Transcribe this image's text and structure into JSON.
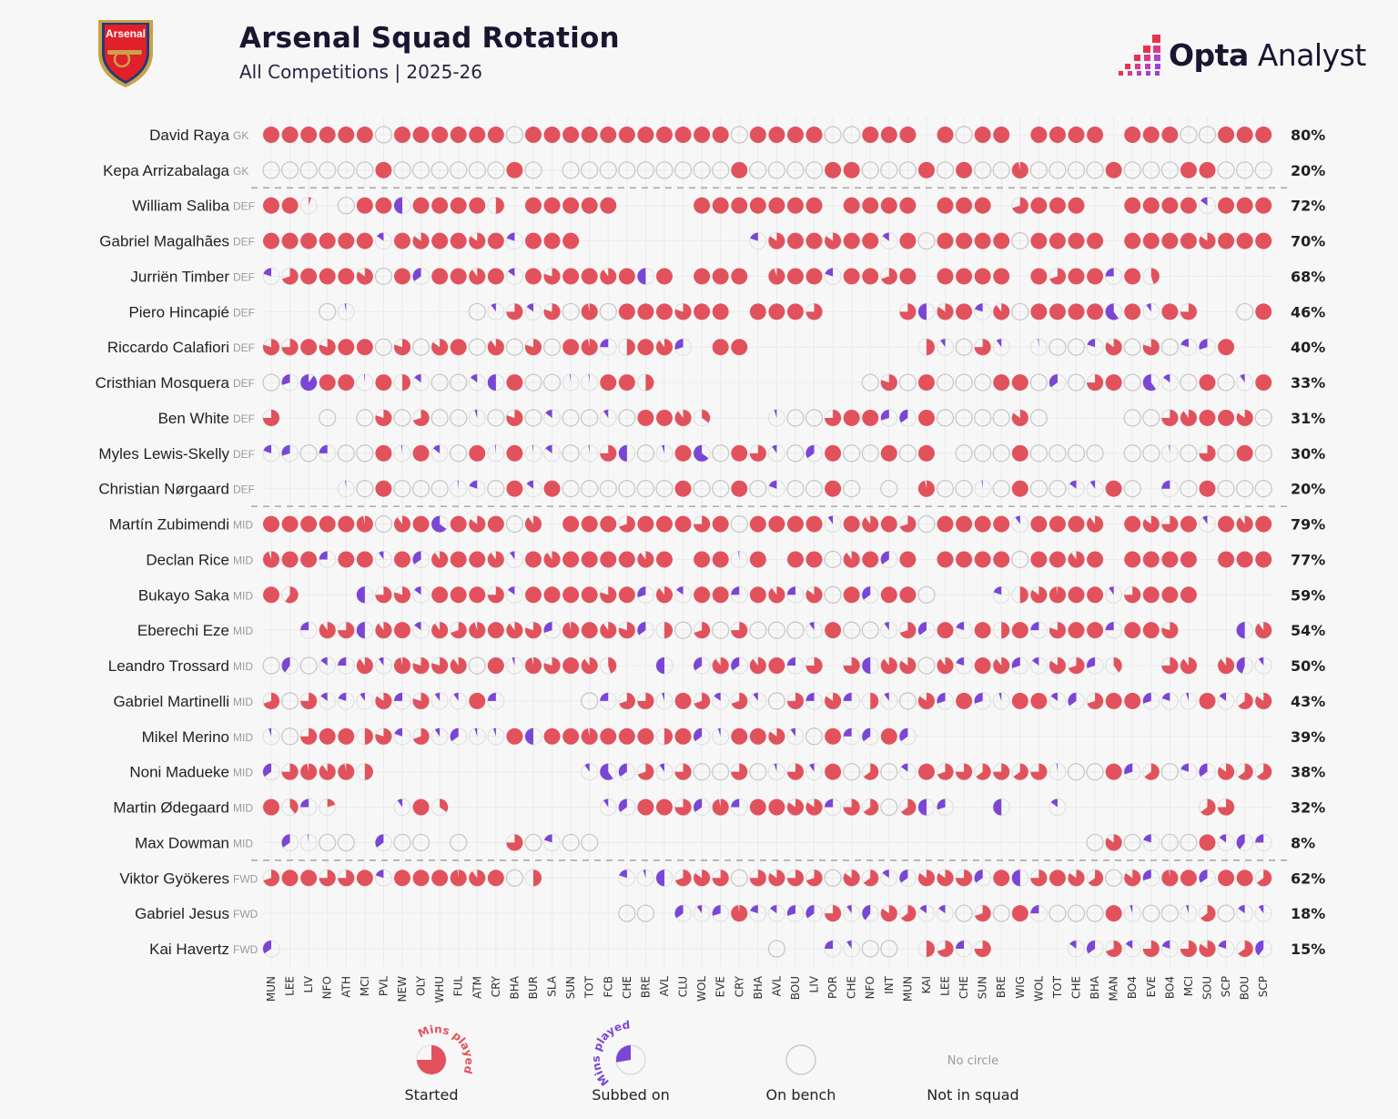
{
  "header": {
    "title": "Arsenal Squad Rotation",
    "subtitle": "All Competitions | 2025-26",
    "crest_text": "Arsenal",
    "brand_bold": "Opta",
    "brand_light": "Analyst"
  },
  "colors": {
    "started": "#e1525d",
    "subbed": "#7b45d6",
    "bench_stroke": "#c9c9c9",
    "background": "#f7f7f7",
    "text": "#222222",
    "position_text": "#9a9a9a"
  },
  "legend": {
    "mins_played": "Mins played",
    "started": "Started",
    "subbed": "Subbed on",
    "bench": "On bench",
    "no_circle": "No circle",
    "not_in_squad": "Not in squad"
  },
  "chart_data": {
    "type": "table",
    "title": "Arsenal Squad Rotation",
    "subtitle": "All Competitions | 2025-26",
    "encoding": "S = started (number = % of minutes played, none = 100), U = subbed on (number = % of minutes played), B = on bench, - = not in squad",
    "categories": [
      "MUN",
      "LEE",
      "LIV",
      "NFO",
      "ATH",
      "MCI",
      "PVL",
      "NEW",
      "OLY",
      "WHU",
      "FUL",
      "ATM",
      "CRY",
      "BHA",
      "BUR",
      "SLA",
      "SUN",
      "TOT",
      "FCB",
      "CHE",
      "BRE",
      "AVL",
      "CLU",
      "WOL",
      "EVE",
      "CRY",
      "BHA",
      "AVL",
      "BOU",
      "LIV",
      "POR",
      "CHE",
      "NFO",
      "INT",
      "MUN",
      "KAI",
      "LEE",
      "CHE",
      "SUN",
      "BRE",
      "WIG",
      "WOL",
      "TOT",
      "CHE",
      "BHA",
      "MAN",
      "BO4",
      "EVE",
      "BO4",
      "MCI",
      "SOU",
      "SCP",
      "BOU",
      "SCP"
    ],
    "group_dividers_after": [
      "GK",
      "DEF",
      "MID"
    ],
    "players": [
      {
        "name": "David Raya",
        "position": "GK",
        "percent": "80%",
        "matches": "S S S S S S B S S S S S S B S S S S S S S S S S S B S S S S B B S S S - S B S S - S S S S - S S S B B S S S"
      },
      {
        "name": "Kepa Arrizabalaga",
        "position": "GK",
        "percent": "20%",
        "matches": "B B B B B B S B B B B B B S B - B B B B B B B B B S B B B B S S B B B S B S B B S97 B B B B S B B B S S B B B"
      },
      {
        "name": "William Saliba",
        "position": "DEF",
        "percent": "72%",
        "matches": "S S S5 - B S S U50 S S S S S50 - S S S S S - - - - S S S S S S S - S S S S - S S S - S70 S S S - - S S S S U15 S S S"
      },
      {
        "name": "Gabriel Magalhães",
        "position": "DEF",
        "percent": "70%",
        "matches": "S S S S S S U15 S S85 S S S85 S U20 S S S - - - - - - - - - U20 S85 S S S85 S S U15 S B S S S S B S S S S - S S S S S85 S S S"
      },
      {
        "name": "Jurriën Timber",
        "position": "DEF",
        "percent": "68%",
        "matches": "U20 S70 S S S S85 B S U35 S S S90 S U15 S S80 S S S90 S U50 S - S S S - S95 S S U20 S S S70 S - S S S S - S S70 S S U25 S S45 - - - - - -"
      },
      {
        "name": "Piero Hincapié",
        "position": "DEF",
        "percent": "46%",
        "matches": "- - - B U3 - - - - - - B U10 S75 U15 S80 B S97 B S S S S80 S S - S S S S75 - - - - S75 U50 S85 S U20 S90 B S S S S U60 S U10 S S75 - - B S"
      },
      {
        "name": "Riccardo Calafiori",
        "position": "DEF",
        "percent": "40%",
        "matches": "S80 S75 S S80 S S B S80 B S85 S B S90 B S80 B S S97 U25 S50 S S90 U30 - S S - - - - - - - - - S50 U10 B S75 U10 - U2 B B U20 S85 B S80 B U20 U30 S - -"
      },
      {
        "name": "Cristhian Mosquera",
        "position": "DEF",
        "percent": "33%",
        "matches": "B U30 U90 S S U2 S S50 U15 B B U15 U50 S B B U2 U2 S S S50 - - - - - - - - - - - B S80 B S B B B S S B U35 B S75 S B U60 U15 B S B U10 S"
      },
      {
        "name": "Ben White",
        "position": "DEF",
        "percent": "31%",
        "matches": "S75 - - B - B S80 B S70 B B U5 B S80 B U15 B B U10 B S S S90 S35 - - - U5 B B S75 S S U30 U35 S B B B B S85 B - - - - B B S75 S90 S S S85 B"
      },
      {
        "name": "Myles Lewis-Skelly",
        "position": "DEF",
        "percent": "30%",
        "matches": "U20 U30 B U25 B B S U2 S U15 B S U2 S U2 U15 B U2 S75 U50 B U5 S U65 B S S75 U10 B U35 S B B S B S - B B B S B B B B - B B U2 B S75 B S B"
      },
      {
        "name": "Christian Nørgaard",
        "position": "DEF",
        "percent": "20%",
        "matches": "- - - - U2 B S B B B U2 U20 B S U15 S B B B B B B S B B S B U20 B B S B - B - S97 B B U2 B S B B U15 U10 S B - U25 B S B B B"
      },
      {
        "name": "Martín Zubimendi",
        "position": "MID",
        "percent": "79%",
        "matches": "S S S S S S97 B S90 S U65 S S85 S B S90 - S S S S70 S S S S75 S B S S S S U10 S S90 S S70 B S S S S U10 S S S S90 - S S85 S75 S U10 S S90 S"
      },
      {
        "name": "Declan Rice",
        "position": "MID",
        "percent": "77%",
        "matches": "S95 S S U25 S S U10 S U35 S90 S S S90 U10 S S90 S S S S S90 S - S S U2 S - S S B S90 S U35 S - S S S S B S S S90 S - S S S S - S S S"
      },
      {
        "name": "Bukayo Saka",
        "position": "MID",
        "percent": "59%",
        "matches": "S S60 - - - U50 S75 S80 U15 S S S S75 U15 S S S S S80 S U30 S90 U15 S S U25 S S90 U25 S85 B S U35 S S B - - - U20 S50 S85 S98 S S U10 S75 S S S - - - -"
      },
      {
        "name": "Eberechi Eze",
        "position": "MID",
        "percent": "54%",
        "matches": "- - U25 S90 S75 U50 S90 S U15 S90 S70 S95 S S90 S80 U30 S97 S S90 S80 U35 S50 B S70 B S75 B B B U10 S B B U10 S70 U35 S U20 S S50 S U25 S80 S S U25 S S S80 - - - U50 S90"
      },
      {
        "name": "Leandro Trossard",
        "position": "MID",
        "percent": "50%",
        "matches": "B U40 B U15 U25 S90 U10 S97 S80 S80 S90 B S U5 S97 S80 S S90 S45 - - U50 - U35 S90 U35 S90 S U25 S75 - S75 U50 S90 S85 B S90 U20 S S90 U30 U15 S85 S70 U30 S40 - - S75 S90 - S90 U45 U10"
      },
      {
        "name": "Gabriel Martinelli",
        "position": "MID",
        "percent": "43%",
        "matches": "S70 B S75 U15 U20 U10 S85 U25 S80 U10 U10 S U25 - - - - B U25 S70 S75 U5 S S70 U15 S70 U10 B S75 U25 S85 U25 S50 U10 B S85 U30 S U30 U5 S S U15 U35 S70 S S U30 U20 U5 S U15 S65 S85"
      },
      {
        "name": "Mikel Merino",
        "position": "MID",
        "percent": "39%",
        "matches": "U5 B S75 S S S50 S80 U20 S70 U10 U35 U5 U5 S U50 S S S97 S S S S50 S U35 U5 S S S85 U10 B S U25 U35 S U35 - - - - - - - - - - - - - - - - - - -"
      },
      {
        "name": "Noni Madueke",
        "position": "MID",
        "percent": "38%",
        "matches": "U35 S75 S97 S90 S97 S50 - - - - - - - - - - - U10 U60 U35 S70 U10 S75 B B S75 B U5 S75 U10 S B S65 B U15 S S70 S75 S65 S75 S65 S75 U2 B B S U30 S65 B U20 U35 S85 S65 S65"
      },
      {
        "name": "Martin Ødegaard",
        "position": "MID",
        "percent": "32%",
        "matches": "S S40 U25 S20 - - - U10 S S35 - - - - - - - - U10 U35 S S S75 U35 S97 U25 S S S85 S85 U25 S75 S65 B S65 U50 U30 - - U50 - - U15 - - - - - - - S65 S75 - -"
      },
      {
        "name": "Max Dowman",
        "position": "MID",
        "percent": "8%",
        "matches": "- U35 U2 B B - U35 B B - B - - S75 B U20 B B - - - - - - - - - - - - - - - - - - - - - - - - - - B S85 B U20 B B S U15 U40 U25"
      },
      {
        "name": "Viktor Gyökeres",
        "position": "FWD",
        "percent": "62%",
        "matches": "S70 S S S75 S75 S U20 S S S S98 S90 S B S50 - - - - U20 U5 U50 S70 S85 S75 B S75 S85 S75 S70 B S85 S65 U15 U35 S85 S85 S75 U35 S U50 S75 S S85 S65 B S85 U30 S98 S U35 S S S65"
      },
      {
        "name": "Gabriel Jesus",
        "position": "FWD",
        "percent": "18%",
        "matches": "- - - - - - - - - - - - - - - - - - - B B - U35 U10 U30 S98 U20 U15 U30 U35 S75 U10 U40 S85 S65 U15 U15 B S70 B S U25 B B B S U5 B B U5 S65 B U15 U10"
      },
      {
        "name": "Kai Havertz",
        "position": "FWD",
        "percent": "15%",
        "matches": "U35 - - - - - - - - - - - - - - - - - - - - - - - - - - B - - U25 U10 B B - S50 S70 U25 S75 - - - - U15 U35 S70 U15 S75 U20 S75 S85 U20 S65 U40"
      }
    ]
  }
}
